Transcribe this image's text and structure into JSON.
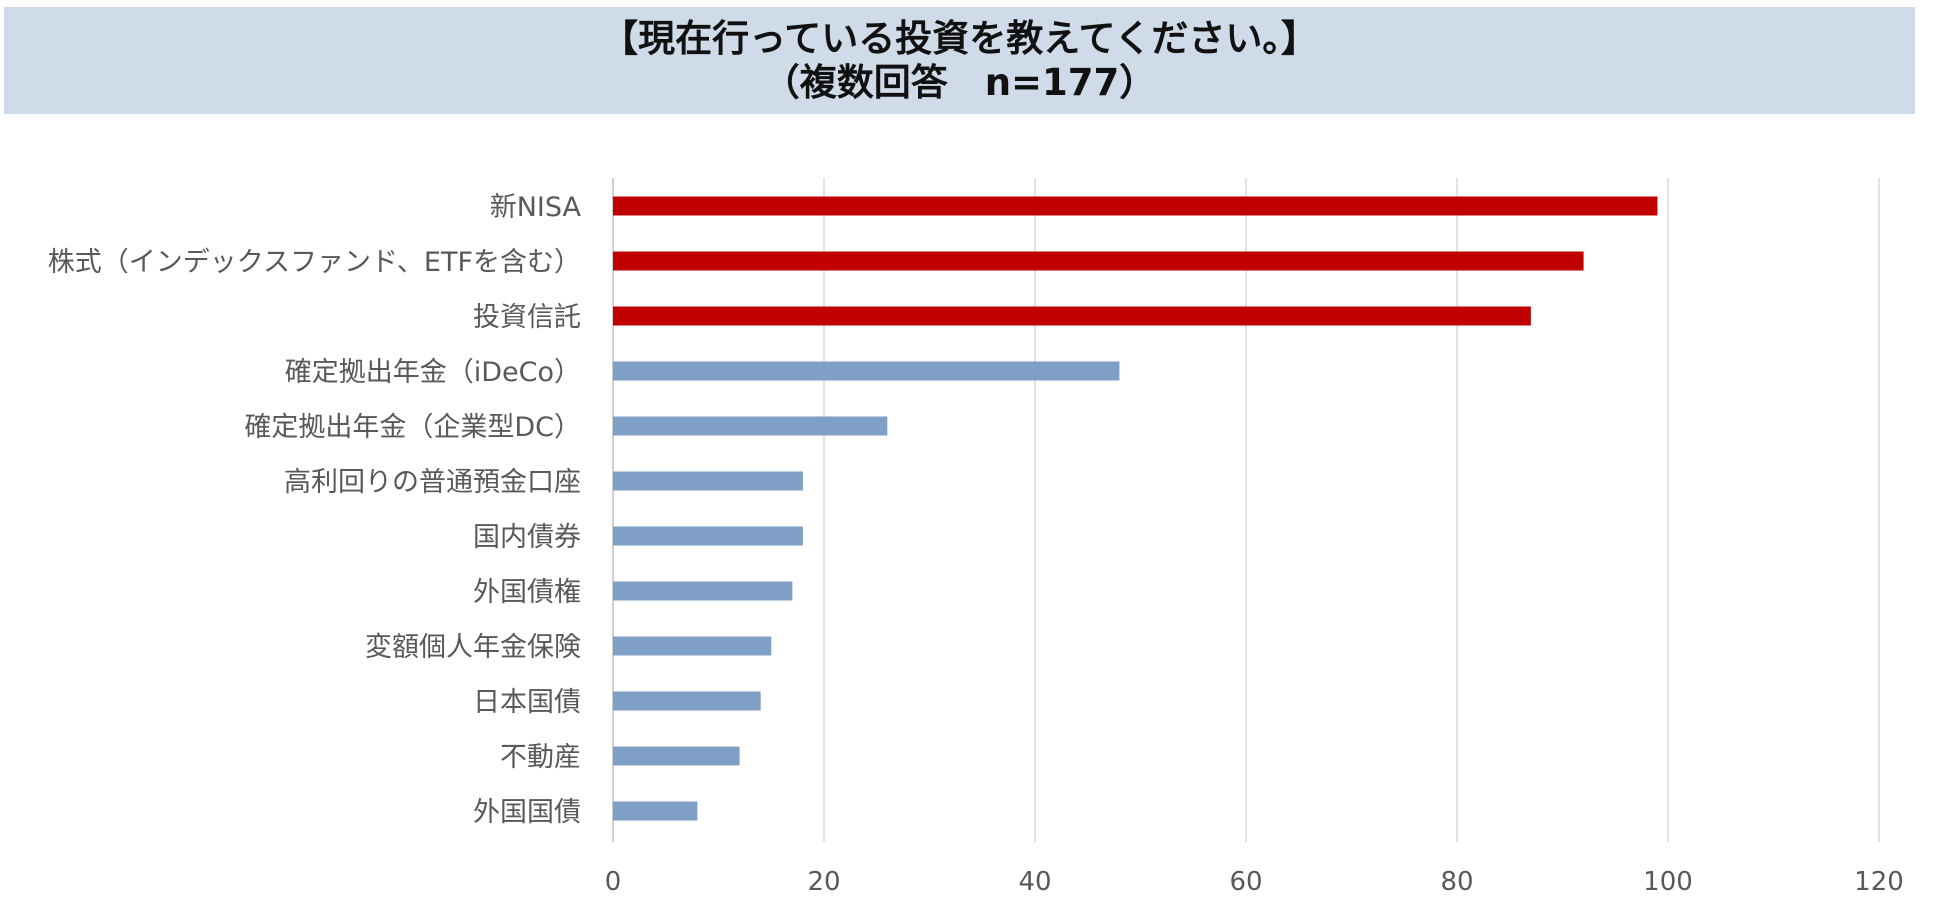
{
  "title": {
    "line1": "【現在行っている投資を教えてください。】",
    "line2": "（複数回答　n=177）"
  },
  "chart_data": {
    "type": "bar",
    "orientation": "horizontal",
    "categories": [
      "新NISA",
      "株式（インデックスファンド、ETFを含む）",
      "投資信託",
      "確定拠出年金（iDeCo）",
      "確定拠出年金（企業型DC）",
      "高利回りの普通預金口座",
      "国内債券",
      "外国債権",
      "変額個人年金保険",
      "日本国債",
      "不動産",
      "外国国債"
    ],
    "values": [
      99,
      92,
      87,
      48,
      26,
      18,
      18,
      17,
      15,
      14,
      12,
      8
    ],
    "xlim": [
      0,
      120
    ],
    "xticks": [
      0,
      20,
      40,
      60,
      80,
      100,
      120
    ],
    "xlabel": "",
    "ylabel": "",
    "grid": "vertical",
    "legend": "none",
    "highlight_count": 3,
    "colors": {
      "highlight": "#c00000",
      "default": "#7f9fc6",
      "grid": "#d9d9d9",
      "axis": "#bfbfbf"
    }
  }
}
